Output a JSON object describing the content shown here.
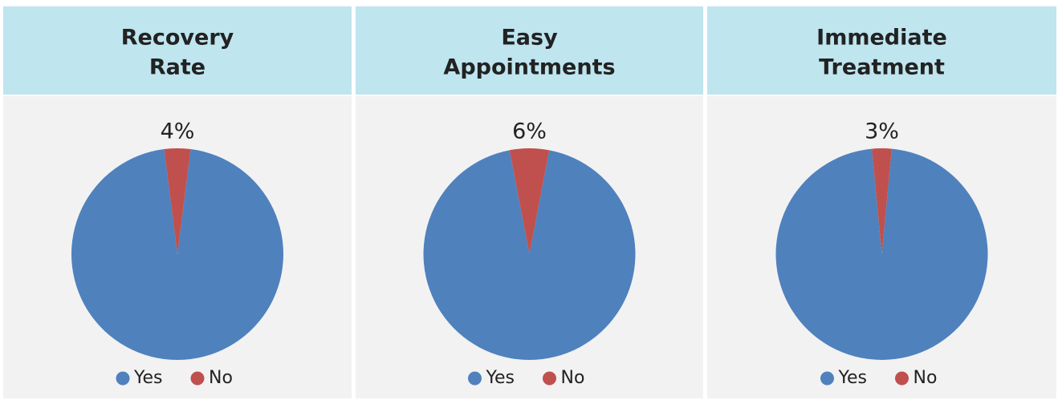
{
  "chart_data": [
    {
      "type": "pie",
      "title": [
        "Recovery",
        "Rate"
      ],
      "categories": [
        "Yes",
        "No"
      ],
      "values": [
        96,
        4
      ],
      "value_labels": [
        null,
        "4%"
      ],
      "colors": [
        "#4f81bd",
        "#c0504d"
      ]
    },
    {
      "type": "pie",
      "title": [
        "Easy",
        "Appointments"
      ],
      "categories": [
        "Yes",
        "No"
      ],
      "values": [
        94,
        6
      ],
      "value_labels": [
        null,
        "6%"
      ],
      "colors": [
        "#4f81bd",
        "#c0504d"
      ]
    },
    {
      "type": "pie",
      "title": [
        "Immediate",
        "Treatment"
      ],
      "categories": [
        "Yes",
        "No"
      ],
      "values": [
        97,
        3
      ],
      "value_labels": [
        null,
        "3%"
      ],
      "colors": [
        "#4f81bd",
        "#c0504d"
      ]
    }
  ]
}
